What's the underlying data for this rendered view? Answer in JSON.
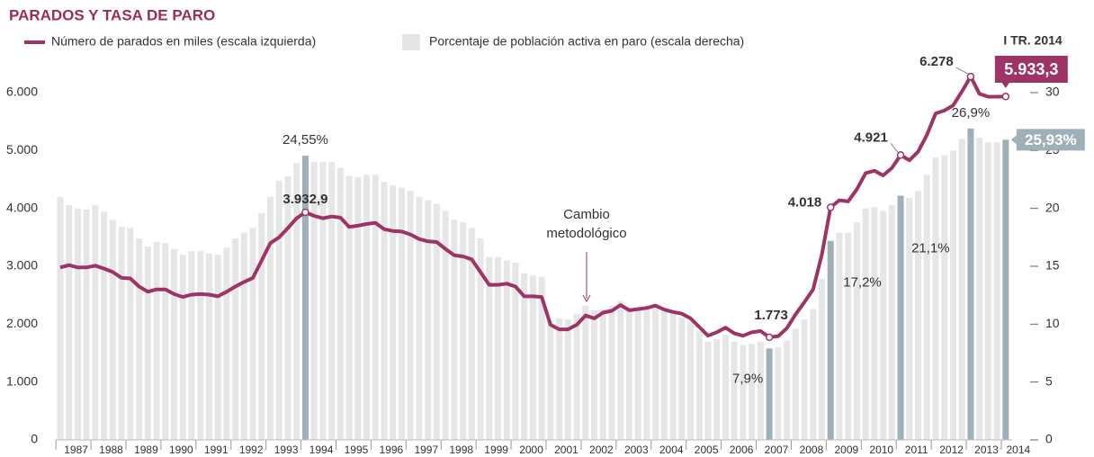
{
  "chart_data": {
    "type": "bar_line",
    "title": "PARADOS Y TASA DE PARO",
    "period_label": "I TR. 2014",
    "annotation": "Cambio metodológico",
    "categories": [
      "1987",
      null,
      null,
      null,
      "1988",
      null,
      null,
      null,
      "1989",
      null,
      null,
      null,
      "1990",
      null,
      null,
      null,
      "1991",
      null,
      null,
      null,
      "1992",
      null,
      null,
      null,
      "1993",
      null,
      null,
      null,
      "1994",
      null,
      null,
      null,
      "1995",
      null,
      null,
      null,
      "1996",
      null,
      null,
      null,
      "1997",
      null,
      null,
      null,
      "1998",
      null,
      null,
      null,
      "1999",
      null,
      null,
      null,
      "2000",
      null,
      null,
      null,
      "2001",
      null,
      null,
      null,
      "2002",
      null,
      null,
      null,
      "2003",
      null,
      null,
      null,
      "2004",
      null,
      null,
      null,
      "2005",
      null,
      null,
      null,
      "2006",
      null,
      null,
      null,
      "2007",
      null,
      null,
      null,
      "2008",
      null,
      null,
      null,
      "2009",
      null,
      null,
      null,
      "2010",
      null,
      null,
      null,
      "2011",
      null,
      null,
      null,
      "2012",
      null,
      null,
      null,
      "2013",
      null,
      null,
      null,
      "2014"
    ],
    "series": [
      {
        "name": "Número de parados en miles (escala izquierda)",
        "kind": "line",
        "axis": "y",
        "color": "#9e3465",
        "values": [
          2980,
          3020,
          2980,
          2980,
          3010,
          2960,
          2900,
          2800,
          2790,
          2650,
          2560,
          2600,
          2600,
          2520,
          2470,
          2510,
          2520,
          2510,
          2480,
          2560,
          2650,
          2730,
          2800,
          3100,
          3400,
          3500,
          3660,
          3830,
          3932.9,
          3870,
          3830,
          3860,
          3840,
          3680,
          3700,
          3730,
          3750,
          3640,
          3610,
          3600,
          3550,
          3470,
          3430,
          3420,
          3300,
          3190,
          3170,
          3120,
          2900,
          2680,
          2680,
          2700,
          2650,
          2480,
          2480,
          2470,
          1990,
          1910,
          1910,
          1990,
          2150,
          2100,
          2200,
          2230,
          2330,
          2240,
          2260,
          2280,
          2320,
          2250,
          2210,
          2180,
          2100,
          1950,
          1800,
          1860,
          1940,
          1840,
          1800,
          1860,
          1880,
          1773,
          1790,
          1930,
          2170,
          2380,
          2600,
          3200,
          4018,
          4140,
          4120,
          4330,
          4610,
          4650,
          4570,
          4700,
          4921,
          4830,
          4980,
          5270,
          5640,
          5690,
          5780,
          6020,
          6278,
          5980,
          5930,
          5930,
          5933.3
        ],
        "value_labels": [
          null,
          null,
          null,
          null,
          null,
          null,
          null,
          null,
          null,
          null,
          null,
          null,
          null,
          null,
          null,
          null,
          null,
          null,
          null,
          null,
          null,
          null,
          null,
          null,
          null,
          null,
          null,
          null,
          "3.932,9",
          null,
          null,
          null,
          null,
          null,
          null,
          null,
          null,
          null,
          null,
          null,
          null,
          null,
          null,
          null,
          null,
          null,
          null,
          null,
          null,
          null,
          null,
          null,
          null,
          null,
          null,
          null,
          null,
          null,
          null,
          null,
          null,
          null,
          null,
          null,
          null,
          null,
          null,
          null,
          null,
          null,
          null,
          null,
          null,
          null,
          null,
          null,
          null,
          null,
          null,
          null,
          null,
          "1.773",
          null,
          null,
          null,
          null,
          null,
          null,
          "4.018",
          null,
          null,
          null,
          null,
          null,
          null,
          null,
          "4.921",
          null,
          null,
          null,
          null,
          null,
          null,
          null,
          "6.278",
          null,
          null,
          null,
          "5.933,3"
        ]
      },
      {
        "name": "Porcentaje de población activa en paro (escala derecha)",
        "kind": "bar",
        "axis": "y2",
        "color": "#e6e6e6",
        "highlight_color": "#9fb0b8",
        "values": [
          21.0,
          20.3,
          20.0,
          19.9,
          20.3,
          19.7,
          19.0,
          18.4,
          18.3,
          17.4,
          16.7,
          17.1,
          17.0,
          16.5,
          16.0,
          16.3,
          16.3,
          16.1,
          16.0,
          16.6,
          17.4,
          17.9,
          18.3,
          19.6,
          21.0,
          22.4,
          22.8,
          23.9,
          24.55,
          24.0,
          24.0,
          24.0,
          23.5,
          22.8,
          22.7,
          22.9,
          22.9,
          22.3,
          22.0,
          21.8,
          21.5,
          21.0,
          20.7,
          20.4,
          19.8,
          19.0,
          18.8,
          18.3,
          17.4,
          15.8,
          15.8,
          15.5,
          15.3,
          14.4,
          14.2,
          14.1,
          10.4,
          10.5,
          10.4,
          10.9,
          11.6,
          11.2,
          11.3,
          11.6,
          12.0,
          11.4,
          11.3,
          11.4,
          11.5,
          11.1,
          10.9,
          10.6,
          10.2,
          9.4,
          8.5,
          8.7,
          9.1,
          8.5,
          8.2,
          8.3,
          8.5,
          7.9,
          8.0,
          8.6,
          9.6,
          10.4,
          11.3,
          13.9,
          17.2,
          17.9,
          17.9,
          18.8,
          20.0,
          20.1,
          19.8,
          20.3,
          21.1,
          20.9,
          21.5,
          22.9,
          24.4,
          24.6,
          25.0,
          26.0,
          26.9,
          26.1,
          25.7,
          25.7,
          25.93
        ],
        "value_labels": [
          null,
          null,
          null,
          null,
          null,
          null,
          null,
          null,
          null,
          null,
          null,
          null,
          null,
          null,
          null,
          null,
          null,
          null,
          null,
          null,
          null,
          null,
          null,
          null,
          null,
          null,
          null,
          null,
          "24,55%",
          null,
          null,
          null,
          null,
          null,
          null,
          null,
          null,
          null,
          null,
          null,
          null,
          null,
          null,
          null,
          null,
          null,
          null,
          null,
          null,
          null,
          null,
          null,
          null,
          null,
          null,
          null,
          null,
          null,
          null,
          null,
          null,
          null,
          null,
          null,
          null,
          null,
          null,
          null,
          null,
          null,
          null,
          null,
          null,
          null,
          null,
          null,
          null,
          null,
          null,
          null,
          null,
          "7,9%",
          null,
          null,
          null,
          null,
          null,
          null,
          "17,2%",
          null,
          null,
          null,
          null,
          null,
          null,
          null,
          "21,1%",
          null,
          null,
          null,
          null,
          null,
          null,
          null,
          "26,9%",
          null,
          null,
          null,
          "25,93%"
        ]
      }
    ],
    "ylim": [
      0,
      6500
    ],
    "yticks": [
      0,
      {
        "value": 1000,
        "label": "1.000"
      },
      {
        "value": 2000,
        "label": "2.000"
      },
      {
        "value": 3000,
        "label": "3.000"
      },
      {
        "value": 4000,
        "label": "4.000"
      },
      {
        "value": 5000,
        "label": "5.000"
      },
      {
        "value": 6000,
        "label": "6.000"
      }
    ],
    "y2lim": [
      0,
      32.5
    ],
    "y2ticks": [
      0,
      5,
      10,
      15,
      20,
      25,
      30
    ],
    "legend": "top"
  }
}
